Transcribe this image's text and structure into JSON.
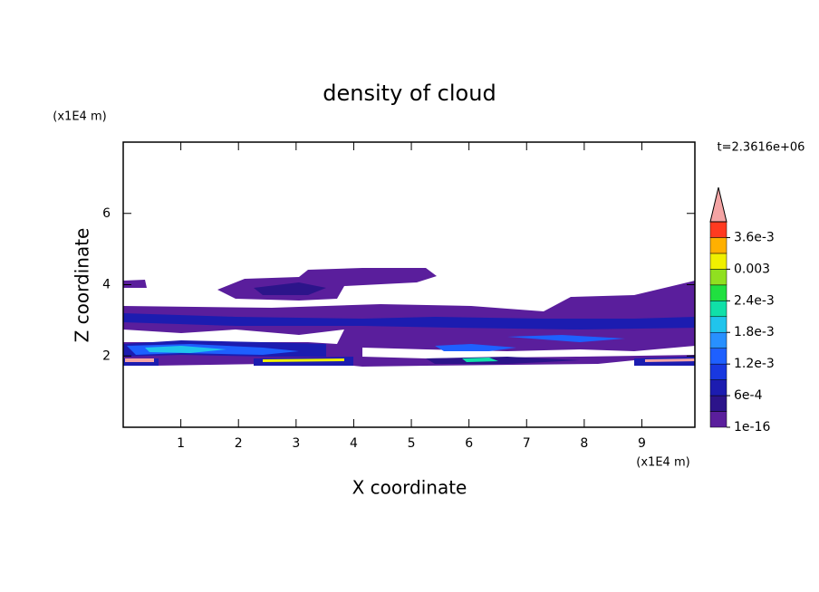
{
  "chart_data": {
    "type": "contour",
    "title": "density of cloud",
    "x_label": "X coordinate",
    "y_label": "Z coordinate",
    "x_unit": "(x1E4 m)",
    "y_unit": "(x1E4 m)",
    "annotation": "t=2.3616e+06",
    "xlim": [
      0,
      9.92
    ],
    "xticks": [
      1,
      2,
      3,
      4,
      5,
      6,
      7,
      8,
      9
    ],
    "ylim": [
      0,
      8
    ],
    "yticks": [
      2,
      4,
      6
    ],
    "colorbar": {
      "lim": [
        0,
        0.0039
      ],
      "ticks": [
        {
          "value": 1e-16,
          "label": "1e-16"
        },
        {
          "value": 0.0006,
          "label": "6e-4"
        },
        {
          "value": 0.0012,
          "label": "1.2e-3"
        },
        {
          "value": 0.0018,
          "label": "1.8e-3"
        },
        {
          "value": 0.0024,
          "label": "2.4e-3"
        },
        0.003,
        {
          "value": 0.0036,
          "label": "3.6e-3"
        }
      ],
      "colors": [
        "#5a1e9c",
        "#2c148a",
        "#1c1cb0",
        "#1838e0",
        "#1e60ff",
        "#2890ff",
        "#20c4ec",
        "#10e0a8",
        "#20e040",
        "#90e020",
        "#f0f000",
        "#ffb000",
        "#ff3a20"
      ],
      "over_color": "#f4a4a4"
    }
  }
}
